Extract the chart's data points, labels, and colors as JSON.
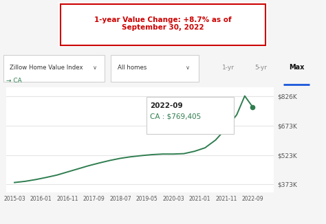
{
  "title_box_text": "1-year Value Change: +8.7% as of\nSeptember 30, 2022",
  "title_box_color": "#cc0000",
  "toolbar_left1": "Zillow Home Value Index",
  "toolbar_left2": "All homes",
  "legend_label": "→ CA",
  "line_color": "#2e7d4f",
  "dot_color": "#2e7d4f",
  "bg_color": "#f5f5f5",
  "plot_bg": "#ffffff",
  "x_labels": [
    "2015-03",
    "2016-01",
    "2016-11",
    "2017-09",
    "2018-07",
    "2019-05",
    "2020-03",
    "2021-01",
    "2021-11",
    "2022-09"
  ],
  "y_ticks": [
    373000,
    523000,
    673000,
    826000
  ],
  "y_tick_labels": [
    "$373K",
    "$523K",
    "$673K",
    "$826K"
  ],
  "ylim": [
    330000,
    870000
  ],
  "tooltip_date": "2022-09",
  "tooltip_label": "CA : $769,405",
  "data_x": [
    0,
    0.4,
    0.8,
    1.2,
    1.6,
    2.0,
    2.4,
    2.8,
    3.2,
    3.6,
    4.0,
    4.4,
    4.8,
    5.2,
    5.6,
    6.0,
    6.4,
    6.8,
    7.2,
    7.6,
    8.0,
    8.4,
    8.7,
    9.0
  ],
  "data_y": [
    382000,
    388000,
    397000,
    408000,
    420000,
    436000,
    452000,
    468000,
    482000,
    495000,
    506000,
    514000,
    520000,
    525000,
    528000,
    528000,
    530000,
    542000,
    560000,
    600000,
    660000,
    730000,
    826000,
    769405
  ],
  "highlight_x": 9.0,
  "highlight_y": 769405,
  "active_underline_color": "#1a56db",
  "xlim": [
    -0.3,
    9.8
  ]
}
